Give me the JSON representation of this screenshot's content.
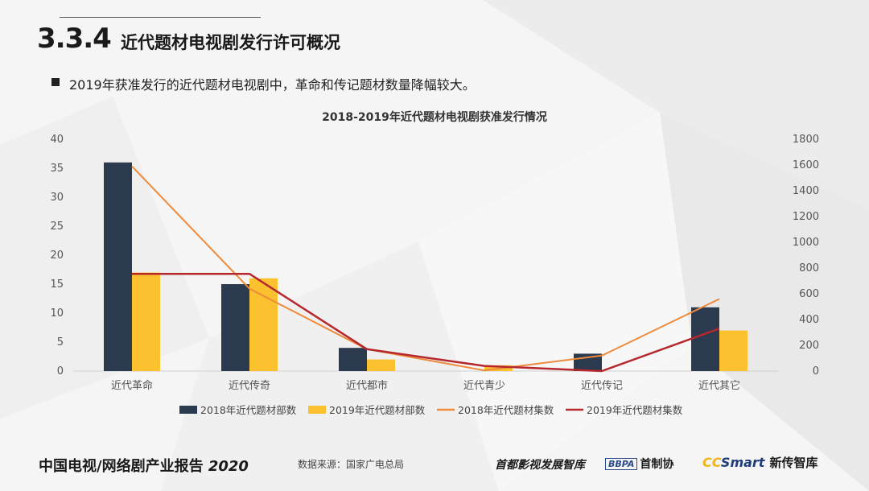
{
  "header": {
    "section_number": "3.3.4",
    "section_title": "近代题材电视剧发行许可概况",
    "bullet": "2019年获准发行的近代题材电视剧中，革命和传记题材数量降幅较大。"
  },
  "footer": {
    "report_title": "中国电视/网络剧产业报告",
    "report_year": "2020",
    "source": "数据来源：国家广电总局",
    "logo1": "首都影视发展智库",
    "logo2_box": "BBPA",
    "logo2_text": "首制协",
    "logo3_cc": "CC",
    "logo3_smart": "Smart",
    "logo3_cn": "新传智库"
  },
  "colors": {
    "bar2018": "#2b3a4e",
    "bar2019": "#fcc12e",
    "line2018": "#ee8a3c",
    "line2019": "#b5282e",
    "axis_text": "#555555"
  },
  "chart_data": {
    "type": "bar",
    "title": "2018-2019年近代题材电视剧获准发行情况",
    "categories": [
      "近代革命",
      "近代传奇",
      "近代都市",
      "近代青少",
      "近代传记",
      "近代其它"
    ],
    "y_left": {
      "min": 0,
      "max": 40,
      "ticks": [
        "0",
        "5",
        "10",
        "15",
        "20",
        "25",
        "30",
        "35",
        "40"
      ]
    },
    "y_right": {
      "min": 0,
      "max": 1800,
      "ticks": [
        "0",
        "200",
        "400",
        "600",
        "800",
        "1000",
        "1200",
        "1400",
        "1600",
        "1800"
      ]
    },
    "series": [
      {
        "name": "2018年近代题材部数",
        "kind": "bar",
        "axis": "left",
        "values": [
          36,
          15,
          4,
          0,
          3,
          11
        ]
      },
      {
        "name": "2019年近代题材部数",
        "kind": "bar",
        "axis": "left",
        "values": [
          17,
          16,
          2,
          1,
          0,
          7
        ]
      },
      {
        "name": "2018年近代题材集数",
        "kind": "line",
        "axis": "right",
        "values": [
          1590,
          640,
          170,
          5,
          120,
          560
        ]
      },
      {
        "name": "2019年近代题材集数",
        "kind": "line",
        "axis": "right",
        "values": [
          755,
          755,
          170,
          40,
          0,
          330
        ]
      }
    ],
    "legend_position": "bottom",
    "grid": false
  }
}
